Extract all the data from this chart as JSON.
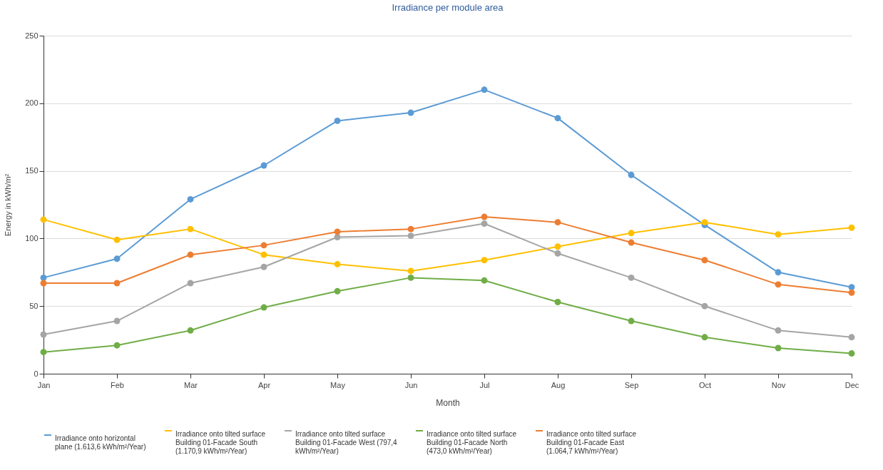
{
  "chart_data": {
    "type": "line",
    "title": "Irradiance per module area",
    "xlabel": "Month",
    "ylabel": "Energy in kWh/m²",
    "categories": [
      "Jan",
      "Feb",
      "Mar",
      "Apr",
      "May",
      "Jun",
      "Jul",
      "Aug",
      "Sep",
      "Oct",
      "Nov",
      "Dec"
    ],
    "series": [
      {
        "name": "Irradiance onto horizontal plane (1.613,6 kWh/m²/Year)",
        "color": "#5b9bd5",
        "values": [
          71,
          85,
          129,
          154,
          187,
          193,
          210,
          189,
          147,
          110,
          75,
          64
        ]
      },
      {
        "name": "Irradiance onto tilted surface Building 01-Facade South (1.170,9 kWh/m²/Year)",
        "color": "#ffc000",
        "values": [
          114,
          99,
          107,
          88,
          81,
          76,
          84,
          94,
          104,
          112,
          103,
          108
        ]
      },
      {
        "name": "Irradiance onto tilted surface Building 01-Facade West (797,4 kWh/m²/Year)",
        "color": "#a5a5a5",
        "values": [
          29,
          39,
          67,
          79,
          101,
          102,
          111,
          89,
          71,
          50,
          32,
          27
        ]
      },
      {
        "name": "Irradiance onto tilted surface Building 01-Facade North (473,0 kWh/m²/Year)",
        "color": "#70ad47",
        "values": [
          16,
          21,
          32,
          49,
          61,
          71,
          69,
          53,
          39,
          27,
          19,
          15
        ]
      },
      {
        "name": "Irradiance onto tilted surface Building 01-Facade East (1.064,7 kWh/m²/Year)",
        "color": "#ed7d31",
        "values": [
          67,
          67,
          88,
          95,
          105,
          107,
          116,
          112,
          97,
          84,
          66,
          60
        ]
      }
    ],
    "ylim": [
      0,
      250
    ],
    "yticks": [
      0,
      50,
      100,
      150,
      200,
      250
    ],
    "grid": "y",
    "legend": "bottom",
    "marker": "circle"
  }
}
